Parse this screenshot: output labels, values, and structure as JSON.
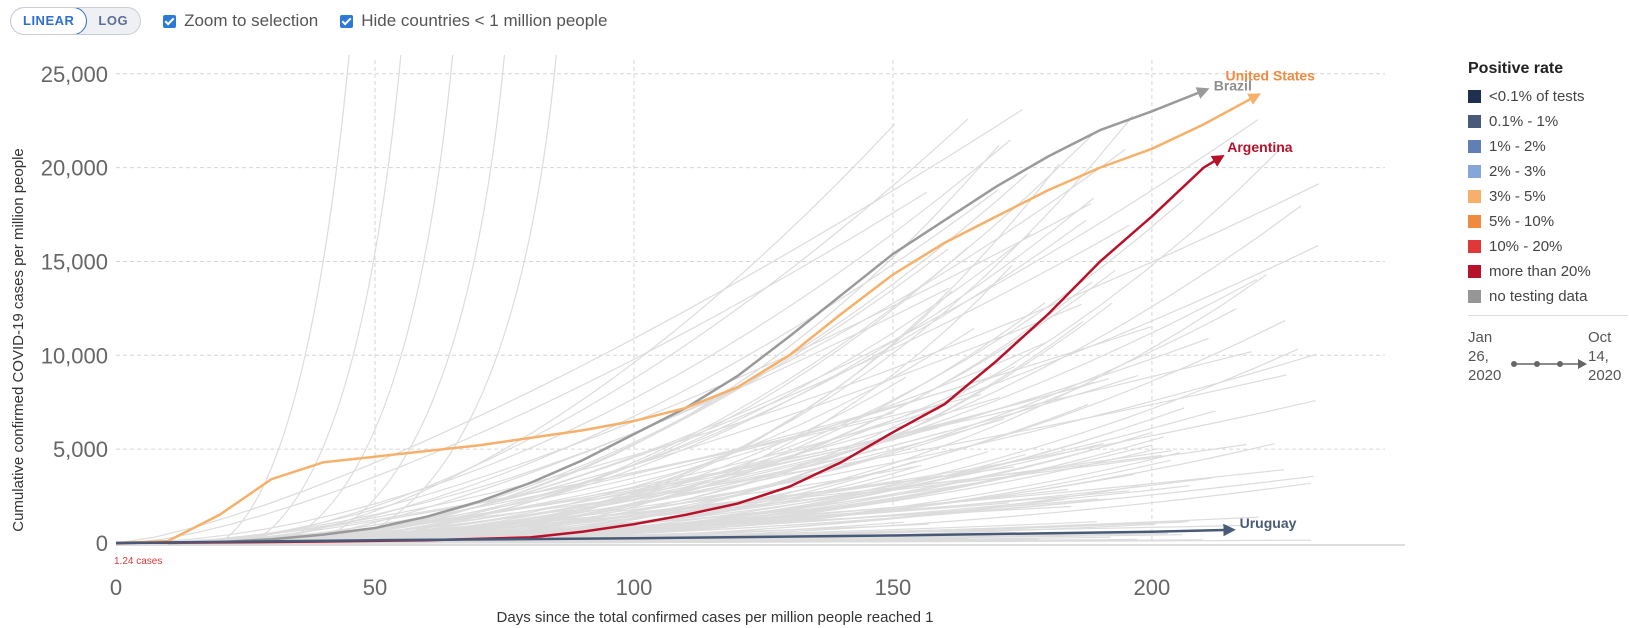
{
  "controls": {
    "scale_options": [
      "LINEAR",
      "LOG"
    ],
    "active_scale": "LINEAR",
    "checkboxes": [
      {
        "label": "Zoom to selection",
        "checked": true
      },
      {
        "label": "Hide countries < 1 million people",
        "checked": true
      }
    ]
  },
  "legend": {
    "title": "Positive rate",
    "items": [
      {
        "label": "<0.1% of tests",
        "color": "#1f2f4e"
      },
      {
        "label": "0.1% - 1%",
        "color": "#485a78"
      },
      {
        "label": "1% - 2%",
        "color": "#5f7fb5"
      },
      {
        "label": "2% - 3%",
        "color": "#86a6da"
      },
      {
        "label": "3% - 5%",
        "color": "#f6b06a"
      },
      {
        "label": "5% - 10%",
        "color": "#f08a3e"
      },
      {
        "label": "10% - 20%",
        "color": "#e03838"
      },
      {
        "label": "more than 20%",
        "color": "#b8112a"
      },
      {
        "label": "no testing data",
        "color": "#969696"
      }
    ]
  },
  "timeline": {
    "start": [
      "Jan",
      "26,",
      "2020"
    ],
    "end": [
      "Oct",
      "14,",
      "2020"
    ]
  },
  "chart_data": {
    "type": "line",
    "title": "",
    "xlabel": "Days since the total confirmed cases per million people reached 1",
    "ylabel": "Cumulative confirmed COVID-19 cases per million people",
    "xlim": [
      0,
      245
    ],
    "ylim": [
      0,
      26000
    ],
    "x_ticks": [
      0,
      50,
      100,
      150,
      200
    ],
    "x_tick_labels": [
      "0",
      "50",
      "100",
      "150",
      "200"
    ],
    "y_ticks": [
      0,
      5000,
      10000,
      15000,
      20000,
      25000
    ],
    "y_tick_labels": [
      "0",
      "5,000",
      "10,000",
      "15,000",
      "20,000",
      "25,000"
    ],
    "grid": true,
    "annotations": [
      "1.24 cases"
    ],
    "highlighted_series": [
      {
        "name": "Brazil",
        "color": "#9a9a9a",
        "points": [
          [
            10,
            0
          ],
          [
            20,
            50
          ],
          [
            30,
            200
          ],
          [
            40,
            450
          ],
          [
            50,
            800
          ],
          [
            60,
            1400
          ],
          [
            70,
            2200
          ],
          [
            80,
            3200
          ],
          [
            90,
            4400
          ],
          [
            100,
            5800
          ],
          [
            110,
            7200
          ],
          [
            120,
            8900
          ],
          [
            130,
            11000
          ],
          [
            140,
            13200
          ],
          [
            150,
            15400
          ],
          [
            160,
            17200
          ],
          [
            170,
            19000
          ],
          [
            180,
            20600
          ],
          [
            190,
            22000
          ],
          [
            200,
            23000
          ],
          [
            210,
            24100
          ]
        ]
      },
      {
        "name": "United States",
        "color": "#f6b06a",
        "points": [
          [
            0,
            0
          ],
          [
            10,
            100
          ],
          [
            20,
            1500
          ],
          [
            30,
            3400
          ],
          [
            40,
            4300
          ],
          [
            50,
            4600
          ],
          [
            60,
            4900
          ],
          [
            70,
            5200
          ],
          [
            80,
            5600
          ],
          [
            90,
            6000
          ],
          [
            100,
            6500
          ],
          [
            110,
            7200
          ],
          [
            120,
            8300
          ],
          [
            130,
            10000
          ],
          [
            140,
            12200
          ],
          [
            150,
            14300
          ],
          [
            160,
            16000
          ],
          [
            170,
            17400
          ],
          [
            180,
            18800
          ],
          [
            190,
            20000
          ],
          [
            200,
            21000
          ],
          [
            210,
            22300
          ],
          [
            220,
            23800
          ]
        ]
      },
      {
        "name": "Argentina",
        "color": "#b8112a",
        "points": [
          [
            0,
            0
          ],
          [
            20,
            30
          ],
          [
            40,
            80
          ],
          [
            60,
            150
          ],
          [
            80,
            300
          ],
          [
            90,
            600
          ],
          [
            100,
            1000
          ],
          [
            110,
            1500
          ],
          [
            120,
            2100
          ],
          [
            130,
            3000
          ],
          [
            140,
            4300
          ],
          [
            150,
            5900
          ],
          [
            160,
            7400
          ],
          [
            170,
            9700
          ],
          [
            180,
            12200
          ],
          [
            190,
            15000
          ],
          [
            200,
            17400
          ],
          [
            210,
            20000
          ],
          [
            213,
            20500
          ]
        ]
      },
      {
        "name": "Uruguay",
        "color": "#485a78",
        "points": [
          [
            0,
            0
          ],
          [
            50,
            150
          ],
          [
            100,
            250
          ],
          [
            150,
            400
          ],
          [
            200,
            600
          ],
          [
            215,
            700
          ]
        ]
      }
    ]
  }
}
